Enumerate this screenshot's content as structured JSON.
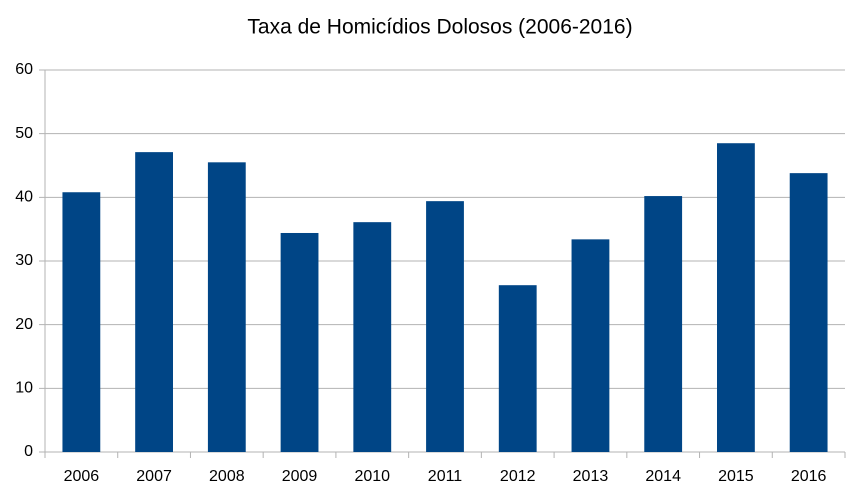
{
  "chart_data": {
    "type": "bar",
    "title": "Taxa de Homicídios Dolosos (2006-2016)",
    "categories": [
      "2006",
      "2007",
      "2008",
      "2009",
      "2010",
      "2011",
      "2012",
      "2013",
      "2014",
      "2015",
      "2016"
    ],
    "values": [
      40.8,
      47.1,
      45.5,
      34.4,
      36.1,
      39.4,
      26.2,
      33.4,
      40.2,
      48.5,
      43.8
    ],
    "color": "#004586",
    "ylim": [
      0,
      60
    ],
    "yticks": [
      0,
      10,
      20,
      30,
      40,
      50,
      60
    ],
    "grid": true
  }
}
